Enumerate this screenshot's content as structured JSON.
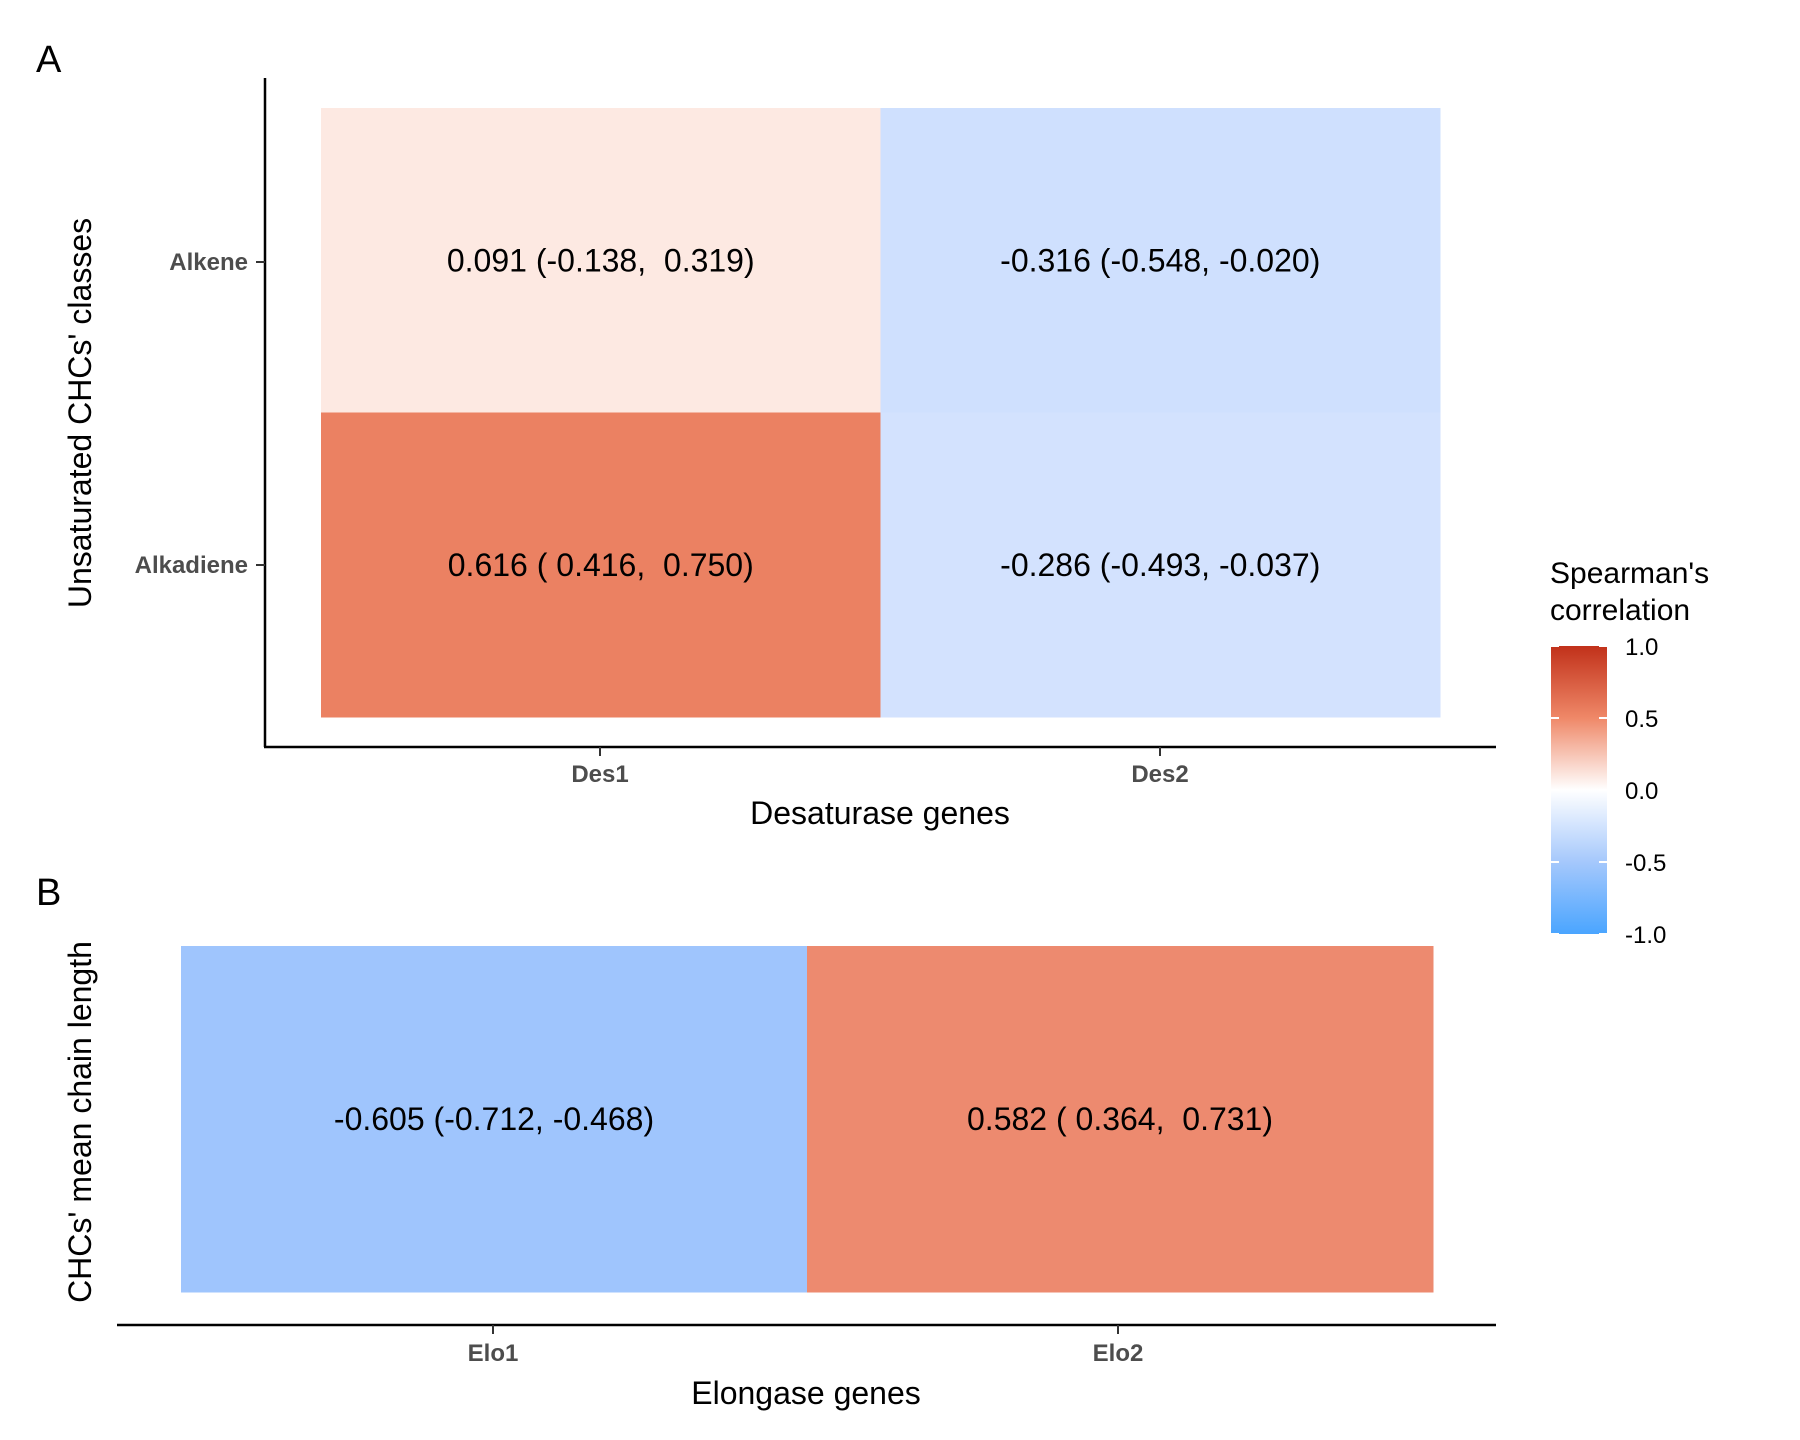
{
  "legend": {
    "title_line1": "Spearman's",
    "title_line2": "correlation",
    "ticks": [
      "1.0",
      "0.5",
      "0.0",
      "-0.5",
      "-1.0"
    ],
    "tick_values": [
      1.0,
      0.5,
      0.0,
      -0.5,
      -1.0
    ],
    "range": [
      -1.0,
      1.0
    ],
    "colors": {
      "low": "#4aa5ff",
      "mid": "#ffffff",
      "high": "#c1311a"
    }
  },
  "chart_data": [
    {
      "type": "heatmap",
      "panel": "A",
      "xlabel": "Desaturase genes",
      "ylabel": "Unsaturated CHCs' classes",
      "x": [
        "Des1",
        "Des2"
      ],
      "y": [
        "Alkene",
        "Alkadiene"
      ],
      "cells": [
        {
          "x": "Des1",
          "y": "Alkene",
          "value": 0.091,
          "label": "0.091 (-0.138,  0.319)",
          "color": "#fde9e2"
        },
        {
          "x": "Des2",
          "y": "Alkene",
          "value": -0.316,
          "label": "-0.316 (-0.548, -0.020)",
          "color": "#cfe0fe"
        },
        {
          "x": "Des1",
          "y": "Alkadiene",
          "value": 0.616,
          "label": "0.616 ( 0.416,  0.750)",
          "color": "#eb8162"
        },
        {
          "x": "Des2",
          "y": "Alkadiene",
          "value": -0.286,
          "label": "-0.286 (-0.493, -0.037)",
          "color": "#d3e2fe"
        }
      ]
    },
    {
      "type": "heatmap",
      "panel": "B",
      "xlabel": "Elongase genes",
      "ylabel": "CHCs' mean chain length",
      "x": [
        "Elo1",
        "Elo2"
      ],
      "y": [
        ""
      ],
      "cells": [
        {
          "x": "Elo1",
          "y": "",
          "value": -0.605,
          "label": "-0.605 (-0.712, -0.468)",
          "color": "#9fc5fd"
        },
        {
          "x": "Elo2",
          "y": "",
          "value": 0.582,
          "label": "0.582 ( 0.364,  0.731)",
          "color": "#ed8a6f"
        }
      ]
    }
  ]
}
